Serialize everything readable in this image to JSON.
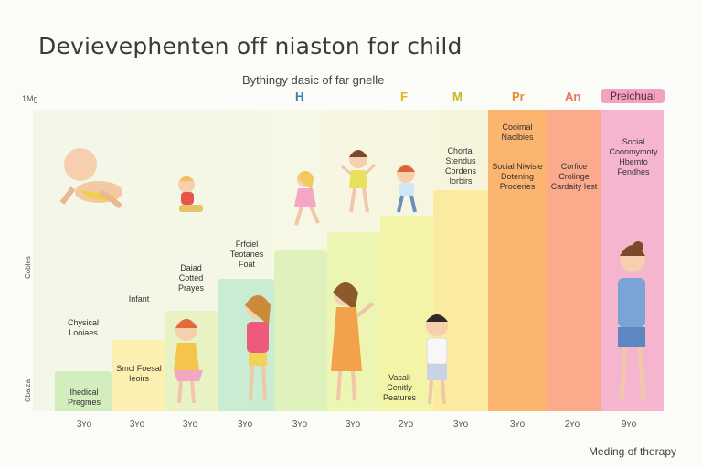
{
  "title": "Devievephenten off niaston for child",
  "subtitle": "Bythingy dasic of far gnelle",
  "y_axis": {
    "top_label": "1Mg",
    "side_label_upper": "Cobles",
    "side_label_lower": "Cbaiza"
  },
  "column_headers": [
    {
      "text": "H",
      "color": "#3b7fb0"
    },
    {
      "text": "F",
      "color": "#e0b419"
    },
    {
      "text": "M",
      "color": "#c9b31e"
    },
    {
      "text": "Pr",
      "color": "#e08b2c"
    },
    {
      "text": "An",
      "color": "#e07a5a"
    },
    {
      "text": "Preichual",
      "color": "#5a2a3a"
    }
  ],
  "stage_labels": {
    "s1": "Ihedical Pregmes",
    "s1_above": "Chysical Looiaes",
    "s2": "Smcl Foesal Ieoirs",
    "s2_above": "Infant",
    "s3": "Daiad Cotted Prayes",
    "s4": "Frfciel Teotanes Foat",
    "s7": "Vacali Cenitly Peatures",
    "s8": "Chortal Stendus Cordens Iorbirs",
    "s9_top": "Cooimal Naolbies",
    "s9": "Social Niwisie Dotening Proderies",
    "s10": "Corfice Crolinge Cardaity Iest",
    "s11": "Social Coonmymoty Hbemto Fendhes"
  },
  "x_ticks": [
    "3ʏo",
    "3ʏo",
    "3ʏo",
    "3ʏo",
    "3ʏo",
    "3ʏo",
    "2ʏo",
    "3ʏo",
    "3ʏo",
    "2ʏo",
    "9ʏo"
  ],
  "footer": "Meding of therapy",
  "colors": {
    "green": "#d6efc0",
    "yellow": "#fbf2b4",
    "lightgreen": "#cdeec3",
    "lime": "#e9f4b2",
    "orange": "#fbb26a",
    "salmon": "#fba68a",
    "pink": "#f6b3cd"
  }
}
